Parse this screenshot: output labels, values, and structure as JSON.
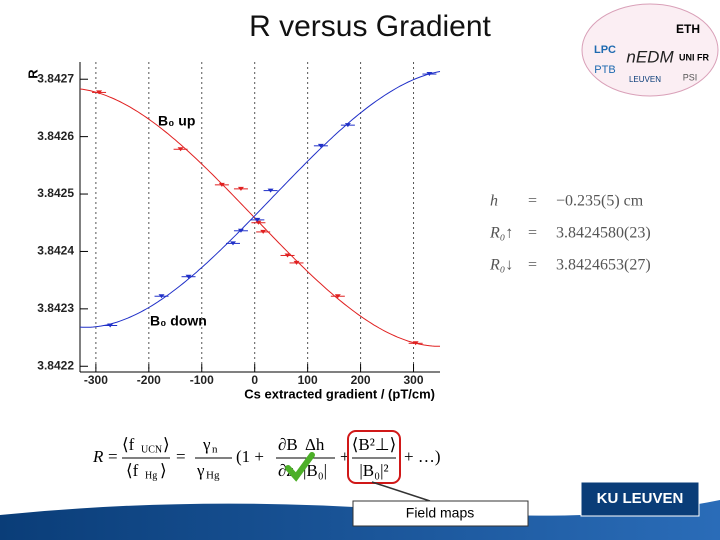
{
  "title": "R  versus Gradient",
  "chart_data": {
    "type": "scatter",
    "x_label": "Cs extracted gradient / (pT/cm)",
    "y_label": "R",
    "series": [
      {
        "name": "B₀ up",
        "color": "#e02020",
        "x": [
          -294,
          -140,
          -62,
          -26,
          7,
          16,
          62,
          79,
          157,
          304
        ],
        "values": [
          3.842677,
          3.842578,
          3.842516,
          3.842509,
          3.84245,
          3.842434,
          3.842393,
          3.84238,
          3.842322,
          3.84224
        ]
      },
      {
        "name": "B₀ down",
        "color": "#2030c8",
        "x": [
          -273,
          -176,
          -125,
          -41,
          -26,
          5,
          30,
          125,
          176,
          330
        ],
        "values": [
          3.842271,
          3.842322,
          3.842356,
          3.842414,
          3.842436,
          3.842455,
          3.842506,
          3.842584,
          3.84262,
          3.842709
        ]
      }
    ],
    "xlim": [
      -330,
      350
    ],
    "ylim": [
      3.84219,
      3.84273
    ],
    "xticks": [
      -300,
      -200,
      -100,
      0,
      100,
      200,
      300
    ],
    "yticks": [
      3.8422,
      3.8423,
      3.8424,
      3.8425,
      3.8426,
      3.8427
    ],
    "grid": true
  },
  "results": [
    {
      "symbol": "h",
      "value": "−0.235(5) cm"
    },
    {
      "symbol": "R₀↑",
      "value": "3.8424580(23)"
    },
    {
      "symbol": "R₀↓",
      "value": "3.8424653(27)"
    }
  ],
  "equals": "=",
  "formula": {
    "lhs": "R",
    "eq": "=",
    "n1": "⟨f",
    "n1s": "UCN",
    "n1e": "⟩",
    "d1": "⟨f",
    "d1s": "Hg",
    "d1e": "⟩",
    "n2": "γ",
    "n2s": "n",
    "d2": "γ",
    "d2s": "Hg",
    "open": "(1 +",
    "n3": "∂B",
    "n3b": "Δh",
    "d3": "∂z",
    "d3b": "|B₀|",
    "n4": "⟨B²⊥⟩",
    "d4": "|B₀|²",
    "tail": "+ …)"
  },
  "callout": "Field maps",
  "logos": [
    "ETH",
    "PTB",
    "LPC",
    "nEDM",
    "UNI FR",
    "LEUVEN",
    "PSI"
  ],
  "footer_logo": "KU LEUVEN"
}
